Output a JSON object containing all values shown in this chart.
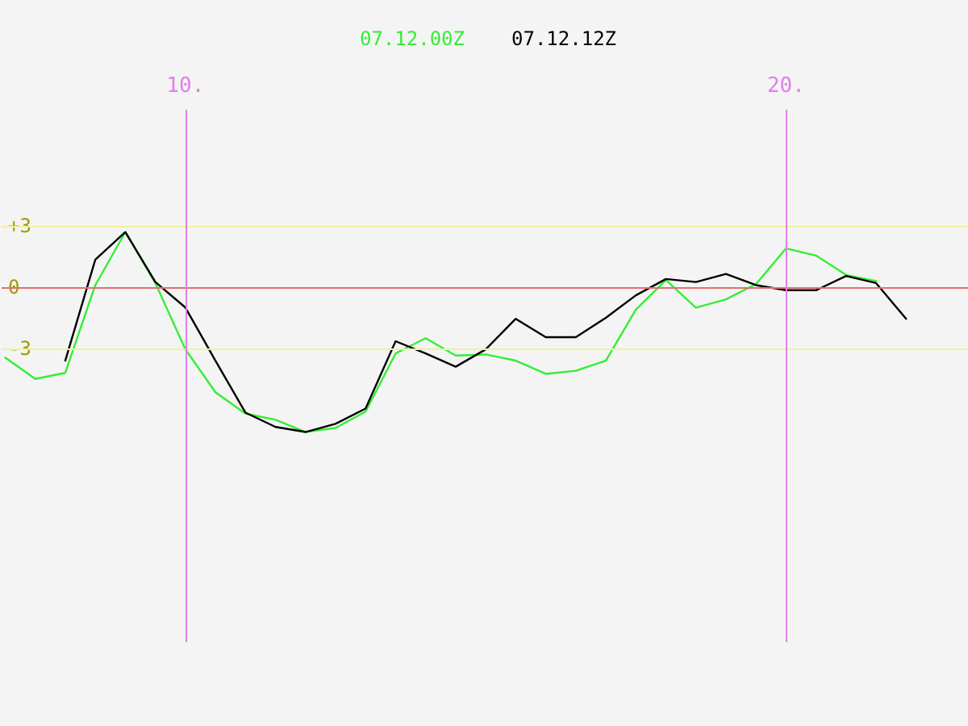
{
  "chart_data": {
    "type": "line",
    "legend": "top",
    "tick_labels": "y",
    "grid": false,
    "marker": "none",
    "line_style": "solid",
    "xlim": [
      6.94,
      23.03
    ],
    "ylim": [
      -17.4,
      8.7
    ],
    "yticks": [
      {
        "value": 3,
        "label": "+3"
      },
      0,
      -3
    ],
    "ref_lines": [
      {
        "axis": "y",
        "value": 3,
        "label": null,
        "color": "#f0f0a0"
      },
      {
        "axis": "y",
        "value": -3,
        "label": null,
        "color": "#f0f0a0"
      },
      {
        "axis": "y",
        "value": 0,
        "label": null,
        "color": "#e07070"
      },
      {
        "axis": "x",
        "value": 10,
        "label": "10.",
        "color": "#e080e8"
      },
      {
        "axis": "x",
        "value": 20,
        "label": "20.",
        "color": "#e080e8"
      }
    ],
    "series": [
      {
        "name": "07.12.00Z",
        "color": "#33ee33",
        "x": [
          7,
          7.5,
          8,
          8.5,
          9,
          9.5,
          10,
          10.5,
          11,
          11.5,
          12,
          12.5,
          13,
          13.5,
          14,
          14.5,
          15,
          15.5,
          16,
          16.5,
          17,
          17.5,
          18,
          18.5,
          19,
          19.5,
          20,
          20.5,
          21,
          21.5
        ],
        "values": [
          -3.45,
          -4.5,
          -4.2,
          0.1,
          2.7,
          0.2,
          -3.05,
          -5.15,
          -6.2,
          -6.5,
          -7.1,
          -6.9,
          -6.1,
          -3.25,
          -2.5,
          -3.35,
          -3.3,
          -3.6,
          -4.25,
          -4.1,
          -3.6,
          -1.1,
          0.35,
          -1.0,
          -0.6,
          0.15,
          1.9,
          1.55,
          0.6,
          0.3
        ]
      },
      {
        "name": "07.12.12Z",
        "color": "#000000",
        "x": [
          8,
          8.5,
          9,
          9.5,
          10,
          10.5,
          11,
          11.5,
          12,
          12.5,
          13,
          13.5,
          14,
          14.5,
          15,
          15.5,
          16,
          16.5,
          17,
          17.5,
          18,
          18.5,
          19,
          19.5,
          20,
          20.5,
          21,
          21.5,
          22
        ],
        "values": [
          -3.6,
          1.35,
          2.7,
          0.25,
          -1.0,
          -3.6,
          -6.15,
          -6.85,
          -7.1,
          -6.7,
          -5.95,
          -2.65,
          -3.25,
          -3.9,
          -3.05,
          -1.55,
          -2.45,
          -2.45,
          -1.5,
          -0.4,
          0.4,
          0.25,
          0.65,
          0.1,
          -0.15,
          -0.15,
          0.55,
          0.2,
          -1.55
        ]
      }
    ]
  }
}
